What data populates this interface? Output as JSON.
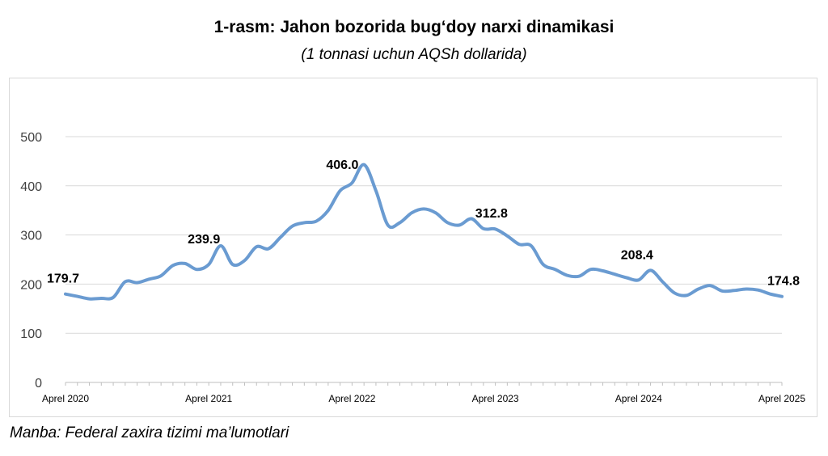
{
  "chart_data": {
    "type": "line",
    "title": "1-rasm: Jahon bozorida bug‘doy narxi dinamikasi",
    "subtitle": "(1 tonnasi uchun AQSh dollarida)",
    "xlabel": "",
    "ylabel": "",
    "ylim": [
      0,
      500
    ],
    "y_ticks": [
      0,
      100,
      200,
      300,
      400,
      500
    ],
    "x_tick_labels": [
      "Aprel 2020",
      "Aprel 2021",
      "Aprel 2022",
      "Aprel 2023",
      "Aprel 2024",
      "Aprel 2025"
    ],
    "grid": true,
    "legend": "none",
    "series": [
      {
        "color": "#6a9bd1",
        "values": [
          179.7,
          175,
          170,
          171,
          173,
          205,
          203,
          210,
          217,
          238,
          242,
          230,
          239.9,
          278,
          240,
          248,
          276,
          272,
          295,
          318,
          325,
          328,
          350,
          390,
          406.0,
          443,
          390,
          320,
          325,
          345,
          353,
          345,
          325,
          320,
          333,
          312.8,
          312,
          298,
          281,
          278,
          240,
          230,
          218,
          216,
          230,
          227,
          220,
          213,
          208.4,
          228,
          205,
          182,
          177,
          190,
          197,
          186,
          187,
          190,
          188,
          180,
          174.8
        ]
      }
    ],
    "data_labels": [
      {
        "index": 0,
        "text": "179.7"
      },
      {
        "index": 12,
        "text": "239.9"
      },
      {
        "index": 24,
        "text": "406.0"
      },
      {
        "index": 35,
        "text": "312.8"
      },
      {
        "index": 48,
        "text": "208.4"
      },
      {
        "index": 60,
        "text": "174.8"
      }
    ]
  },
  "source": "Manba: Federal zaxira tizimi ma’lumotlari"
}
